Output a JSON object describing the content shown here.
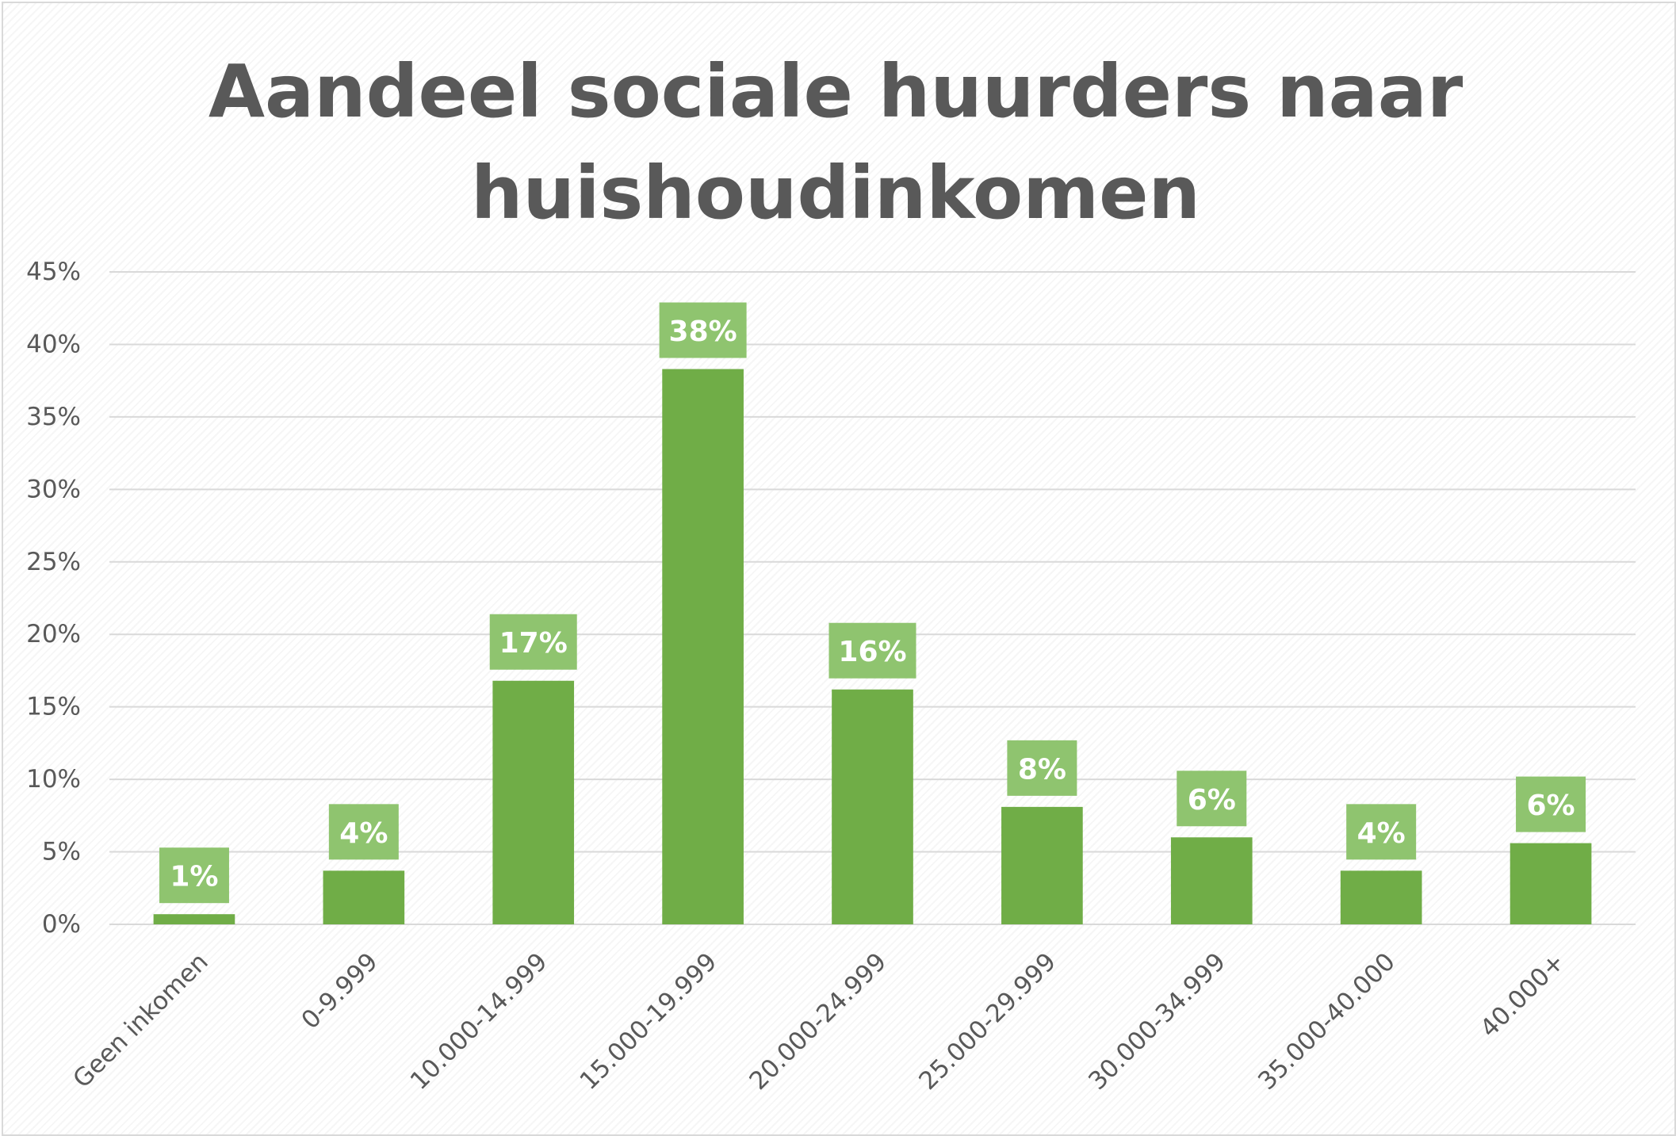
{
  "chart_data": {
    "type": "bar",
    "title": "Aandeel sociale huurders naar huishoudinkomen",
    "title_lines": [
      "Aandeel sociale huurders naar",
      "huishoudinkomen"
    ],
    "xlabel": "",
    "ylabel": "",
    "categories": [
      "Geen inkomen",
      "0-9.999",
      "10.000-14.999",
      "15.000-19.999",
      "20.000-24.999",
      "25.000-29.999",
      "30.000-34.999",
      "35.000-40.000",
      "40.000+"
    ],
    "values": [
      0.7,
      3.7,
      16.8,
      38.3,
      16.2,
      8.1,
      6.0,
      3.7,
      5.6
    ],
    "data_labels": [
      "1%",
      "4%",
      "17%",
      "38%",
      "16%",
      "8%",
      "6%",
      "4%",
      "6%"
    ],
    "ylim": [
      0,
      45
    ],
    "yticks": [
      0,
      5,
      10,
      15,
      20,
      25,
      30,
      35,
      40,
      45
    ],
    "ytick_labels": [
      "0%",
      "5%",
      "10%",
      "15%",
      "20%",
      "25%",
      "30%",
      "35%",
      "40%",
      "45%"
    ],
    "grid": true,
    "legend": "none"
  },
  "colors": {
    "bar": "#70ad47",
    "label_box": "#8fc46f",
    "grid": "#d9d9d9",
    "text": "#595959"
  }
}
